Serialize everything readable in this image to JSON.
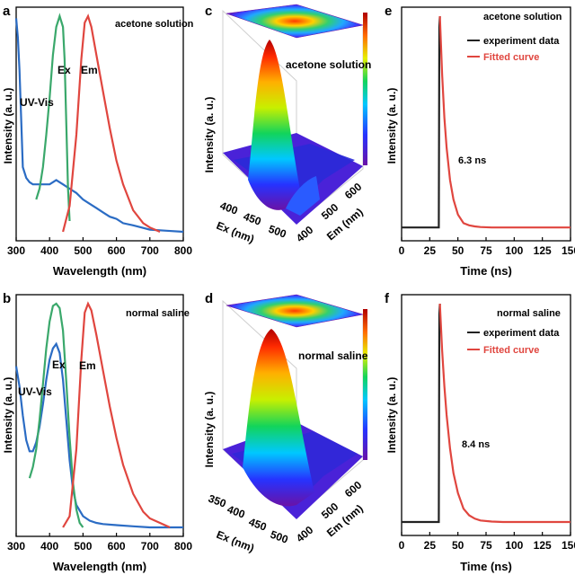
{
  "panels": {
    "a": {
      "letter": "a",
      "note": "acetone solution",
      "xlabel": "Wavelength (nm)",
      "ylabel": "Intensity (a. u.)",
      "ticks": [
        "300",
        "400",
        "500",
        "600",
        "700",
        "800"
      ],
      "labels": {
        "uv": "UV-Vis",
        "ex": "Ex",
        "em": "Em"
      }
    },
    "b": {
      "letter": "b",
      "note": "normal saline",
      "xlabel": "Wavelength (nm)",
      "ylabel": "Intensity (a. u.)",
      "ticks": [
        "300",
        "400",
        "500",
        "600",
        "700",
        "800"
      ],
      "labels": {
        "uv": "UV-Vis",
        "ex": "Ex",
        "em": "Em"
      }
    },
    "c": {
      "letter": "c",
      "note": "acetone solution",
      "ylabel": "Intensity (a. u.)",
      "ex_label": "Ex (nm)",
      "em_label": "Em (nm)",
      "ex_ticks": [
        "400",
        "450",
        "500"
      ],
      "em_ticks": [
        "400",
        "500",
        "600"
      ]
    },
    "d": {
      "letter": "d",
      "note": "normal saline",
      "ylabel": "Intensity (a. u.)",
      "ex_label": "Ex (nm)",
      "em_label": "Em (nm)",
      "ex_ticks": [
        "350",
        "400",
        "450",
        "500"
      ],
      "em_ticks": [
        "400",
        "500",
        "600"
      ]
    },
    "e": {
      "letter": "e",
      "note": "acetone solution",
      "legend": [
        "experiment data",
        "Fitted curve"
      ],
      "lifetime": "6.3 ns",
      "xlabel": "Time (ns)",
      "ylabel": "Intensity (a. u.)",
      "ticks": [
        "0",
        "25",
        "50",
        "75",
        "100",
        "125",
        "150"
      ]
    },
    "f": {
      "letter": "f",
      "note": "normal saline",
      "legend": [
        "experiment data",
        "Fitted curve"
      ],
      "lifetime": "8.4 ns",
      "xlabel": "Time (ns)",
      "ylabel": "Intensity (a. u.)",
      "ticks": [
        "0",
        "25",
        "50",
        "75",
        "100",
        "125",
        "150"
      ]
    }
  },
  "colors": {
    "uv": "#2b6cc4",
    "ex": "#3aa86b",
    "em": "#e0463f",
    "exp": "#222222",
    "fit": "#e0463f"
  },
  "chart_data": [
    {
      "type": "line",
      "panel": "a",
      "xlabel": "Wavelength (nm)",
      "ylabel": "Intensity (a. u.)",
      "xlim": [
        300,
        800
      ],
      "ylim": [
        0,
        1.0
      ],
      "series": [
        {
          "name": "UV-Vis",
          "x": [
            300,
            305,
            310,
            315,
            320,
            330,
            340,
            350,
            360,
            380,
            400,
            420,
            440,
            460,
            480,
            500,
            520,
            540,
            560,
            580,
            600,
            620,
            650,
            700,
            750,
            800
          ],
          "y": [
            0.99,
            0.9,
            0.75,
            0.52,
            0.3,
            0.25,
            0.23,
            0.22,
            0.22,
            0.22,
            0.22,
            0.24,
            0.22,
            0.2,
            0.18,
            0.15,
            0.13,
            0.11,
            0.09,
            0.07,
            0.06,
            0.04,
            0.03,
            0.01,
            0.005,
            0.0
          ]
        },
        {
          "name": "Ex",
          "x": [
            360,
            370,
            380,
            390,
            400,
            410,
            420,
            430,
            440,
            445,
            450,
            455,
            460
          ],
          "y": [
            0.15,
            0.2,
            0.3,
            0.45,
            0.62,
            0.82,
            0.95,
            1.0,
            0.95,
            0.8,
            0.5,
            0.2,
            0.05
          ]
        },
        {
          "name": "Em",
          "x": [
            440,
            460,
            480,
            495,
            505,
            515,
            525,
            540,
            560,
            580,
            600,
            620,
            650,
            680,
            700,
            730
          ],
          "y": [
            0.0,
            0.12,
            0.45,
            0.8,
            0.97,
            1.0,
            0.95,
            0.82,
            0.65,
            0.48,
            0.33,
            0.22,
            0.1,
            0.04,
            0.02,
            0.0
          ]
        }
      ]
    },
    {
      "type": "line",
      "panel": "b",
      "xlabel": "Wavelength (nm)",
      "ylabel": "Intensity (a. u.)",
      "xlim": [
        300,
        800
      ],
      "ylim": [
        0,
        1.0
      ],
      "series": [
        {
          "name": "UV-Vis",
          "x": [
            300,
            310,
            320,
            330,
            340,
            350,
            360,
            370,
            380,
            390,
            400,
            410,
            420,
            430,
            440,
            450,
            460,
            470,
            480,
            500,
            520,
            540,
            560,
            600,
            650,
            700,
            750,
            800
          ],
          "y": [
            0.72,
            0.63,
            0.5,
            0.39,
            0.34,
            0.34,
            0.38,
            0.45,
            0.55,
            0.66,
            0.75,
            0.8,
            0.82,
            0.78,
            0.66,
            0.48,
            0.3,
            0.17,
            0.1,
            0.05,
            0.03,
            0.02,
            0.015,
            0.01,
            0.005,
            0.0,
            0.0,
            0.0
          ]
        },
        {
          "name": "Ex",
          "x": [
            340,
            350,
            360,
            370,
            380,
            390,
            400,
            410,
            420,
            430,
            440,
            450,
            460,
            470,
            480,
            490,
            500
          ],
          "y": [
            0.22,
            0.27,
            0.35,
            0.48,
            0.64,
            0.8,
            0.92,
            0.99,
            1.0,
            0.98,
            0.88,
            0.65,
            0.4,
            0.2,
            0.08,
            0.02,
            0.0
          ]
        },
        {
          "name": "Em",
          "x": [
            440,
            460,
            480,
            495,
            505,
            515,
            525,
            540,
            560,
            580,
            600,
            620,
            650,
            680,
            700,
            730,
            760
          ],
          "y": [
            0.0,
            0.05,
            0.35,
            0.75,
            0.96,
            1.0,
            0.97,
            0.86,
            0.7,
            0.54,
            0.4,
            0.28,
            0.15,
            0.07,
            0.04,
            0.02,
            0.0
          ]
        }
      ]
    },
    {
      "type": "line",
      "panel": "e",
      "xlabel": "Time (ns)",
      "ylabel": "Intensity (a. u.)",
      "xlim": [
        0,
        150
      ],
      "ylim": [
        0,
        1.0
      ],
      "series": [
        {
          "name": "experiment data",
          "x": [
            0,
            33,
            33.5,
            34
          ],
          "y": [
            0.02,
            0.02,
            0.95,
            1.0
          ]
        },
        {
          "name": "Fitted curve",
          "x": [
            34,
            36,
            38,
            40,
            43,
            46,
            50,
            55,
            60,
            65,
            70,
            80,
            90,
            100,
            120,
            150
          ],
          "y": [
            1.0,
            0.73,
            0.53,
            0.39,
            0.24,
            0.15,
            0.08,
            0.04,
            0.03,
            0.025,
            0.022,
            0.02,
            0.02,
            0.02,
            0.02,
            0.02
          ]
        }
      ]
    },
    {
      "type": "line",
      "panel": "f",
      "xlabel": "Time (ns)",
      "ylabel": "Intensity (a. u.)",
      "xlim": [
        0,
        150
      ],
      "ylim": [
        0,
        1.0
      ],
      "series": [
        {
          "name": "experiment data",
          "x": [
            0,
            33,
            33.5,
            34
          ],
          "y": [
            0.02,
            0.02,
            0.95,
            1.0
          ]
        },
        {
          "name": "Fitted curve",
          "x": [
            34,
            36,
            38,
            40,
            43,
            46,
            50,
            55,
            60,
            65,
            70,
            80,
            90,
            100,
            120,
            150
          ],
          "y": [
            1.0,
            0.79,
            0.63,
            0.5,
            0.35,
            0.24,
            0.15,
            0.08,
            0.05,
            0.035,
            0.027,
            0.022,
            0.02,
            0.02,
            0.02,
            0.02
          ]
        }
      ]
    }
  ]
}
